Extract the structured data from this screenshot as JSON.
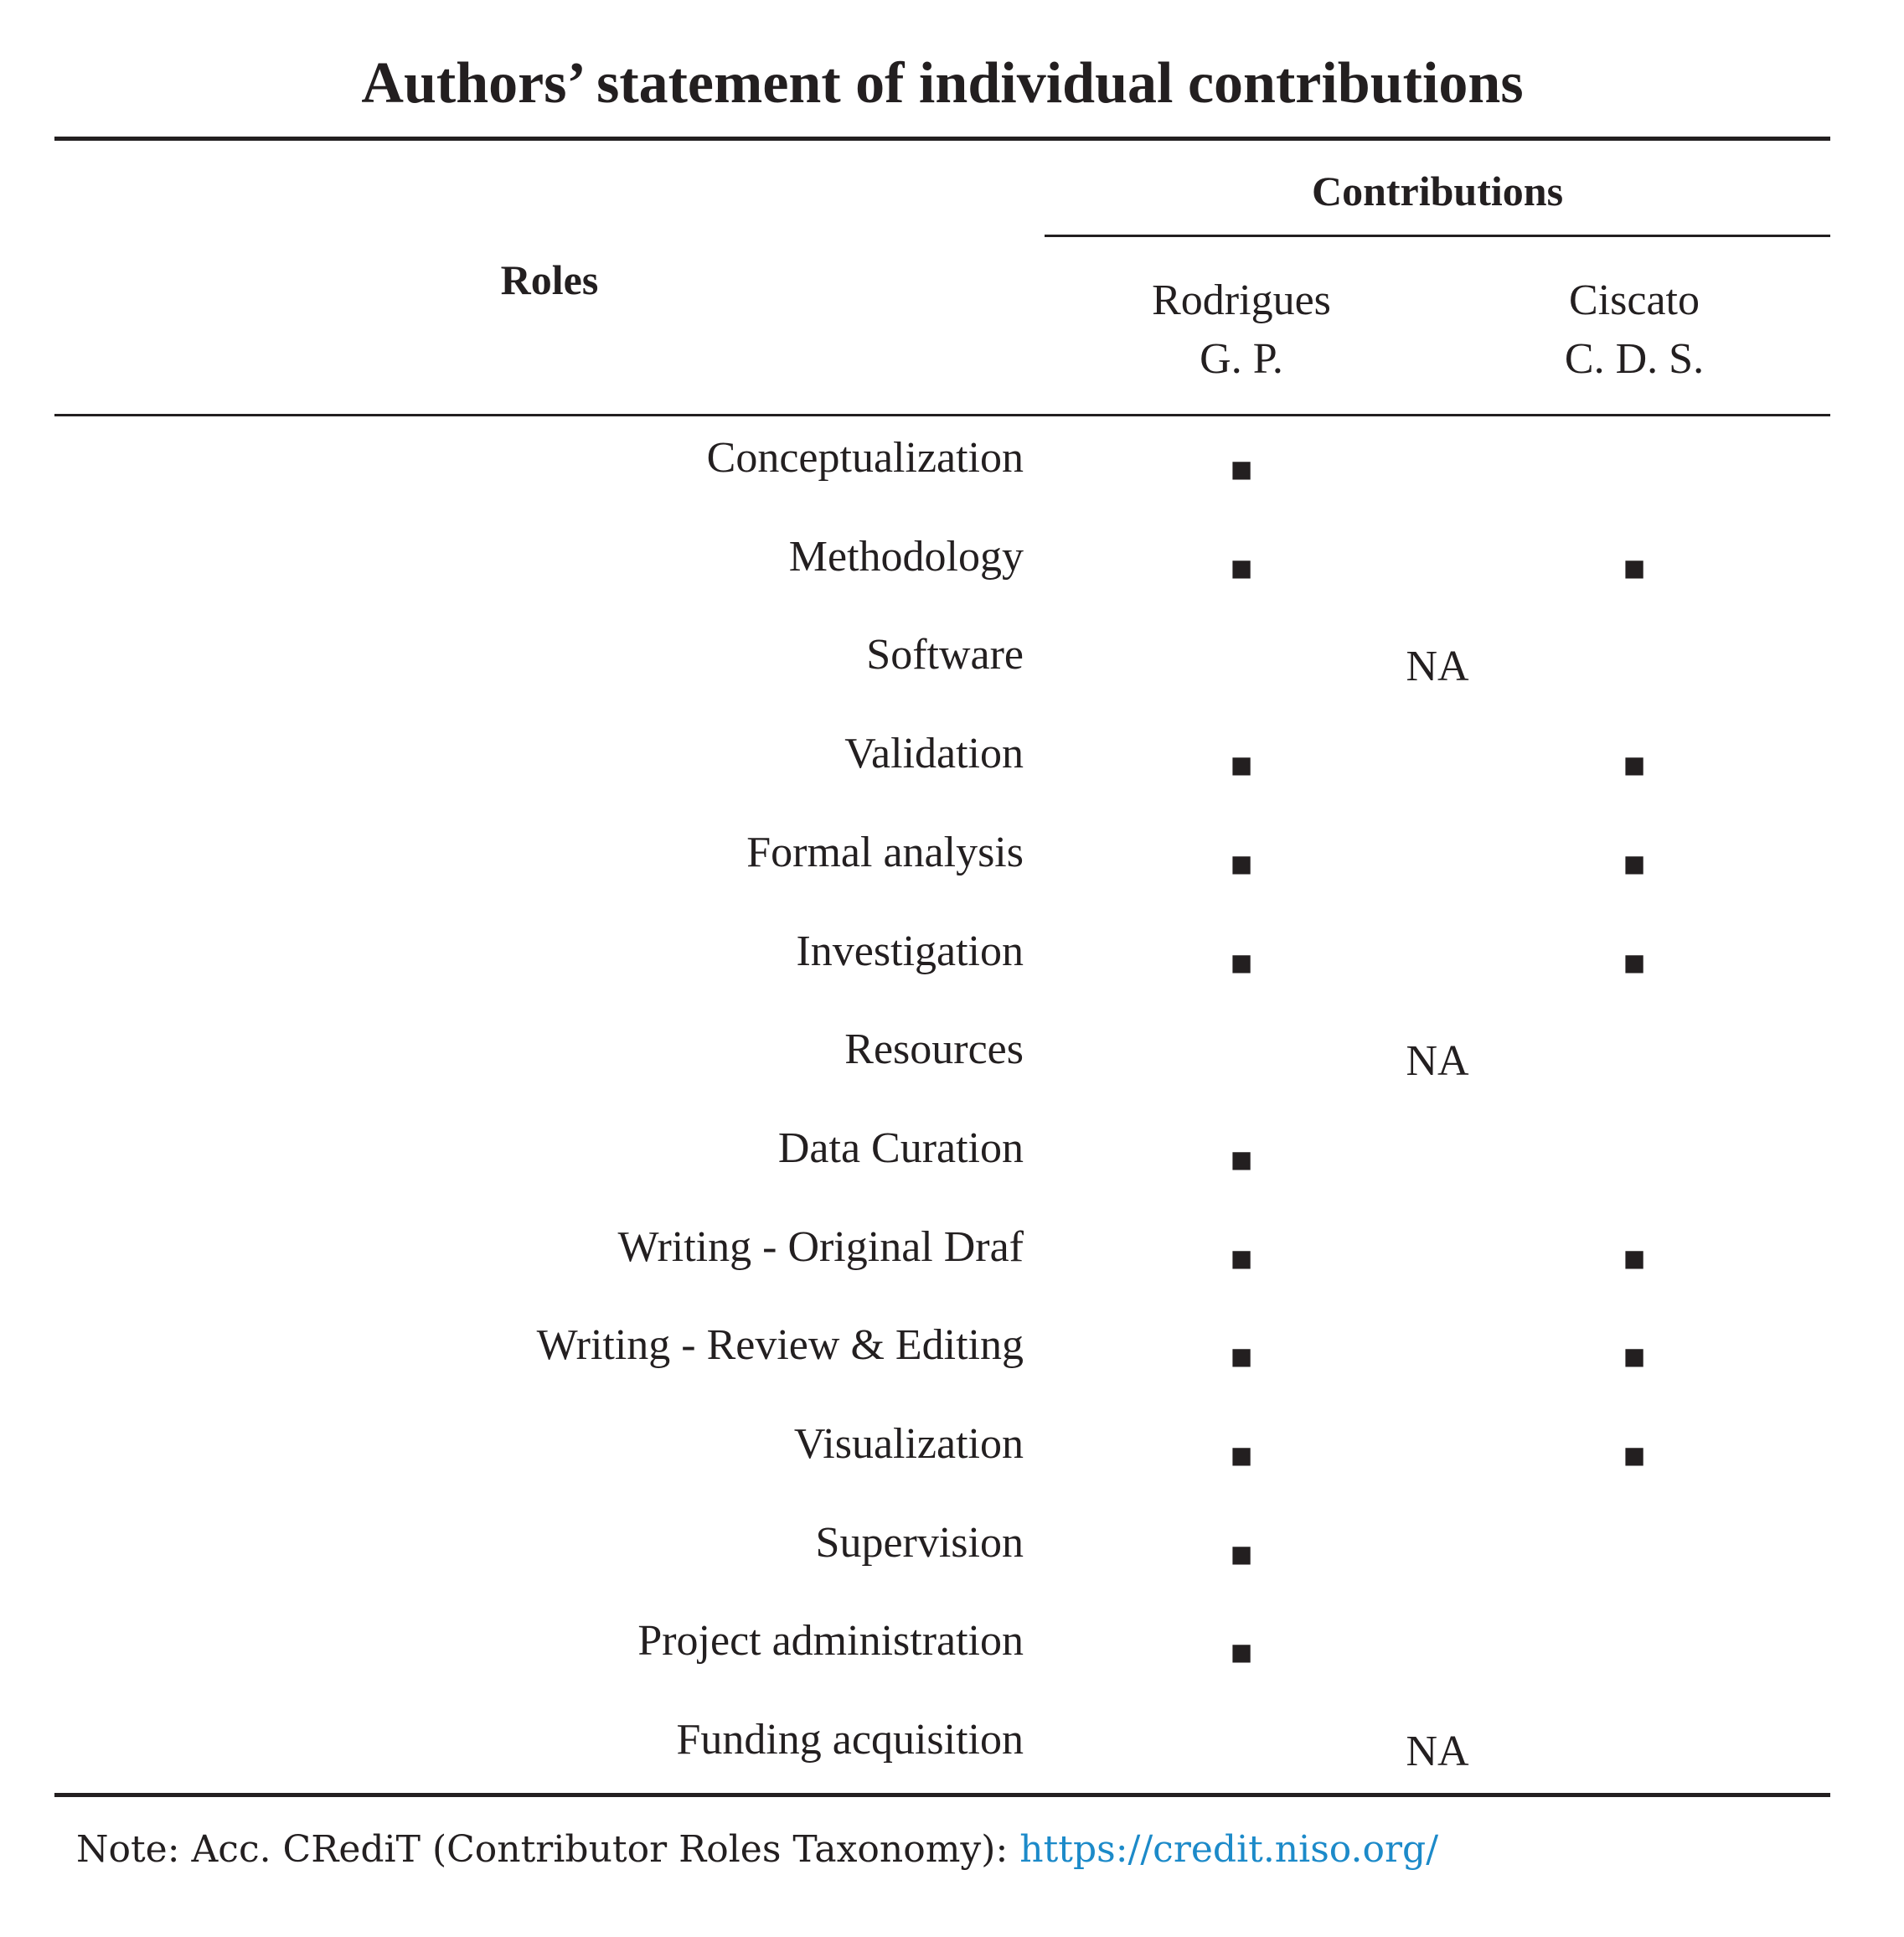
{
  "title": "Authors’ statement of individual contributions",
  "header": {
    "roles": "Roles",
    "contributions": "Contributions",
    "authors": [
      [
        "Rodrigues",
        "G. P."
      ],
      [
        "Ciscato",
        "C. D. S."
      ]
    ]
  },
  "rows": [
    {
      "role": "Conceptualization",
      "cells": [
        "■",
        null
      ]
    },
    {
      "role": "Methodology",
      "cells": [
        "■",
        "■"
      ]
    },
    {
      "role": "Software",
      "merged": "NA"
    },
    {
      "role": "Validation",
      "cells": [
        "■",
        "■"
      ]
    },
    {
      "role": "Formal analysis",
      "cells": [
        "■",
        "■"
      ]
    },
    {
      "role": "Investigation",
      "cells": [
        "■",
        "■"
      ]
    },
    {
      "role": "Resources",
      "merged": "NA"
    },
    {
      "role": "Data Curation",
      "cells": [
        "■",
        null
      ]
    },
    {
      "role": "Writing - Original Draf",
      "cells": [
        "■",
        "■"
      ]
    },
    {
      "role": "Writing - Review & Editing",
      "cells": [
        "■",
        "■"
      ]
    },
    {
      "role": "Visualization",
      "cells": [
        "■",
        "■"
      ]
    },
    {
      "role": "Supervision",
      "cells": [
        "■",
        null
      ]
    },
    {
      "role": "Project administration",
      "cells": [
        "■",
        null
      ]
    },
    {
      "role": "Funding acquisition",
      "merged": "NA"
    }
  ],
  "note": {
    "text": "Note: Acc. CRediT (Contributor Roles Taxonomy): ",
    "link": "https://credit.niso.org/"
  }
}
